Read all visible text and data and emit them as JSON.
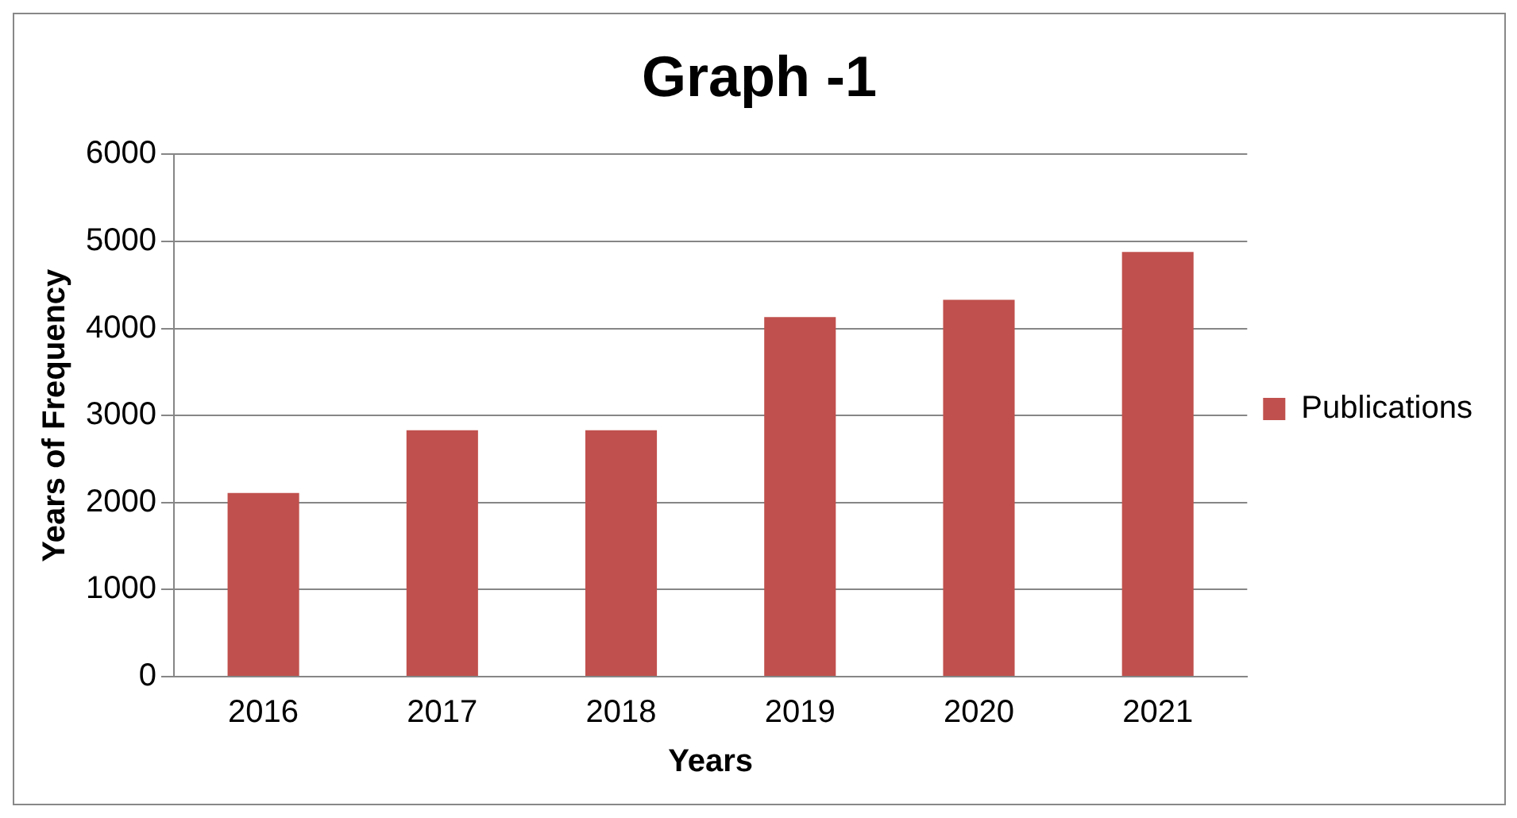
{
  "chart_data": {
    "type": "bar",
    "title": "Graph -1",
    "xlabel": "Years",
    "ylabel": "Years of Frequency",
    "categories": [
      "2016",
      "2017",
      "2018",
      "2019",
      "2020",
      "2021"
    ],
    "series": [
      {
        "name": "Publications",
        "color": "#c0504d",
        "values": [
          2110,
          2830,
          2830,
          4130,
          4330,
          4880
        ]
      }
    ],
    "ylim": [
      0,
      6000
    ],
    "yticks": [
      0,
      1000,
      2000,
      3000,
      4000,
      5000,
      6000
    ],
    "grid": "y",
    "legend": "right"
  }
}
